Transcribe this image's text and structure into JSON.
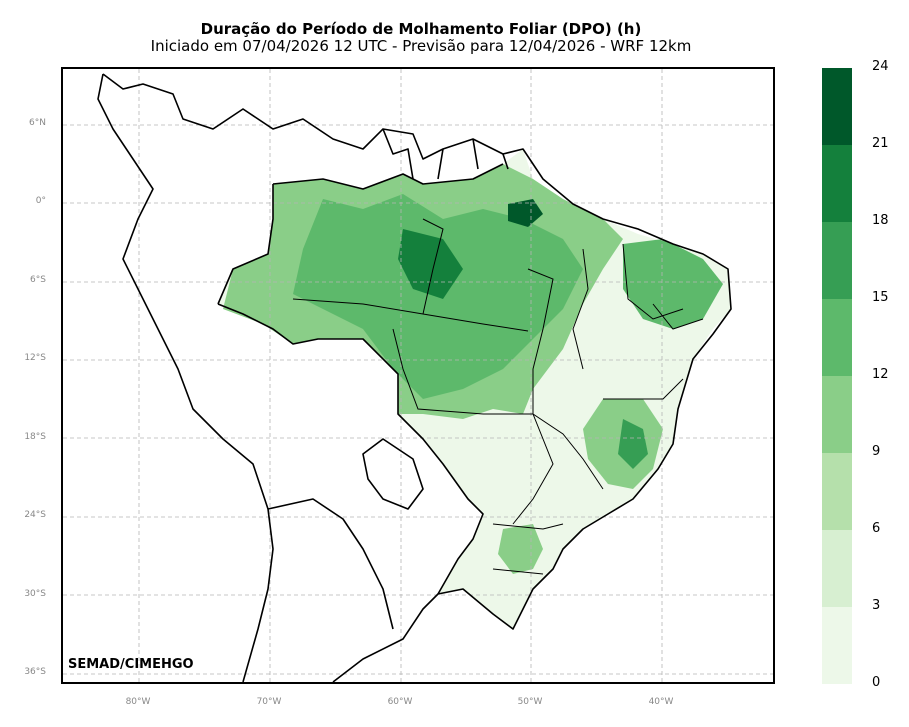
{
  "title": "Duração do Período de Molhamento Foliar (DPO) (h)",
  "subtitle": "Iniciado em 07/04/2026 12 UTC - Previsão para 12/04/2026 - WRF 12km",
  "credit": "SEMAD/CIMEHGO",
  "lat_labels": [
    "6°N",
    "0°",
    "6°S",
    "12°S",
    "18°S",
    "24°S",
    "30°S",
    "36°S"
  ],
  "lon_labels": [
    "80°W",
    "70°W",
    "60°W",
    "50°W",
    "40°W"
  ],
  "colorbar": {
    "ticks": [
      "0",
      "3",
      "6",
      "9",
      "12",
      "15",
      "18",
      "21",
      "24"
    ],
    "colors": [
      "#edf8e9",
      "#d7efd1",
      "#b5e0ab",
      "#8ace88",
      "#5db96b",
      "#369e54",
      "#14803c",
      "#00582a"
    ]
  }
}
